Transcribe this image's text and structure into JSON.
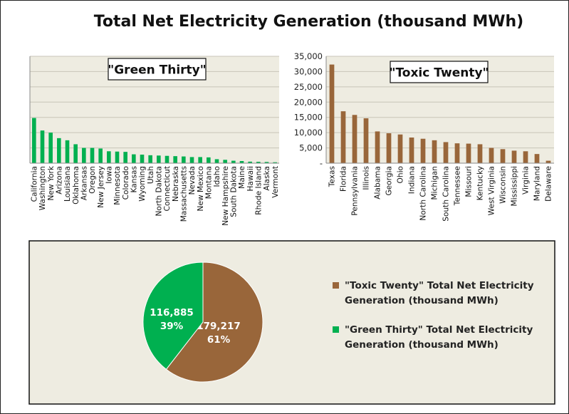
{
  "page_title": "Total Net Electricity Generation (thousand MWh)",
  "colors": {
    "green": "#00b050",
    "brown": "#99663a",
    "plot_bg": "#eeece1",
    "gridline": "#c8c5b8"
  },
  "chart_data": [
    {
      "type": "bar",
      "title": "\"Green Thirty\"",
      "ylim": [
        0,
        35000
      ],
      "grid": true,
      "y_axis_labels_shown": false,
      "categories": [
        "California",
        "Washington",
        "New York",
        "Arizona",
        "Louisiana",
        "Oklahoma",
        "Arkansas",
        "Oregon",
        "New Jersey",
        "Iowa",
        "Minnesota",
        "Colorado",
        "Kansas",
        "Wyoming",
        "Utah",
        "North Dakota",
        "Connecticut",
        "Nebraska",
        "Massachusetts",
        "Nevada",
        "New Mexico",
        "Montana",
        "Idaho",
        "New Hampshire",
        "South Dakota",
        "Maine",
        "Hawaii",
        "Rhode Island",
        "Alaska",
        "Vermont"
      ],
      "values": [
        14800,
        10700,
        10000,
        8200,
        7500,
        6200,
        5000,
        5000,
        4800,
        3900,
        3800,
        3700,
        2900,
        2800,
        2600,
        2500,
        2400,
        2300,
        2200,
        2000,
        2000,
        1900,
        1300,
        1100,
        800,
        700,
        500,
        450,
        400,
        300
      ],
      "color": "#00b050"
    },
    {
      "type": "bar",
      "title": "\"Toxic Twenty\"",
      "ylim": [
        0,
        35000
      ],
      "grid": true,
      "yticks": [
        "-",
        "5,000",
        "10,000",
        "15,000",
        "20,000",
        "25,000",
        "30,000",
        "35,000"
      ],
      "categories": [
        "Texas",
        "Florida",
        "Pennsylvania",
        "Illinois",
        "Alabama",
        "Georgia",
        "Ohio",
        "Indiana",
        "North Carolina",
        "Michigan",
        "South Carolina",
        "Tennessee",
        "Missouri",
        "Kentucky",
        "West Virginia",
        "Wisconsin",
        "Mississippi",
        "Virginia",
        "Maryland",
        "Delaware"
      ],
      "values": [
        32300,
        17000,
        15800,
        14700,
        10400,
        9800,
        9400,
        8400,
        8000,
        7500,
        6900,
        6500,
        6400,
        6200,
        5000,
        4600,
        4100,
        3900,
        3000,
        800
      ],
      "color": "#99663a"
    },
    {
      "type": "pie",
      "slices": [
        {
          "label": "\"Toxic Twenty\" Total Net Electricity Generation (thousand MWh)",
          "value": 179217,
          "value_text": "179,217",
          "percent_text": "61%",
          "color": "#99663a"
        },
        {
          "label": "\"Green Thirty\" Total Net Electricity Generation (thousand MWh)",
          "value": 116885,
          "value_text": "116,885",
          "percent_text": "39%",
          "color": "#00b050"
        }
      ],
      "legend_placement": "right"
    }
  ]
}
